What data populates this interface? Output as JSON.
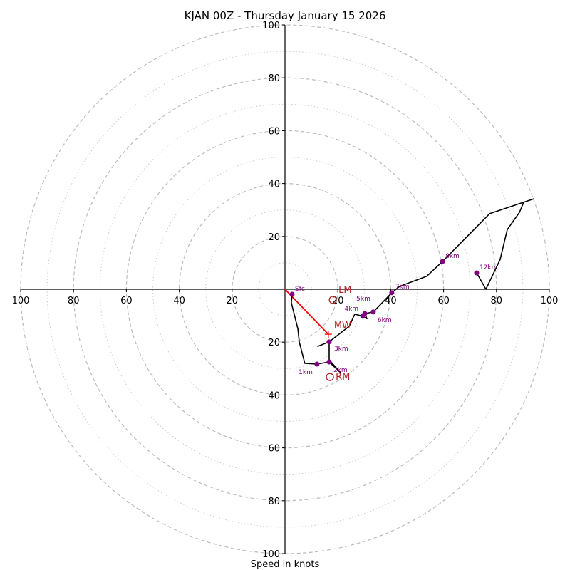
{
  "chart_data": {
    "type": "line",
    "subtype": "hodograph",
    "title": "KJAN 00Z - Thursday January 15 2026",
    "xlabel": "Speed in knots",
    "ylabel": "",
    "rings_major": [
      20,
      40,
      60,
      80,
      100
    ],
    "rings_minor": [
      10,
      30,
      50,
      70,
      90
    ],
    "xlim": [
      -100,
      100
    ],
    "ylim": [
      -100,
      100
    ],
    "x_tick_labels": [
      "100",
      "80",
      "60",
      "40",
      "20",
      "20",
      "40",
      "60",
      "80",
      "100"
    ],
    "x_tick_values": [
      -100,
      -80,
      -60,
      -40,
      -20,
      20,
      40,
      60,
      80,
      100
    ],
    "y_tick_labels": [
      "100",
      "80",
      "60",
      "40",
      "20",
      "20",
      "40",
      "60",
      "80",
      "100"
    ],
    "y_tick_values": [
      100,
      80,
      60,
      40,
      20,
      -20,
      -40,
      -60,
      -80,
      -100
    ],
    "grid": true,
    "series": [
      {
        "name": "wind profile",
        "color": "#000000",
        "points": [
          [
            2.7,
            -1.9
          ],
          [
            2.4,
            -5.1
          ],
          [
            4.9,
            -15.1
          ],
          [
            5.4,
            -19.9
          ],
          [
            7.5,
            -28.0
          ],
          [
            12.1,
            -28.3
          ],
          [
            16.7,
            -27.5
          ],
          [
            21.0,
            -31.5
          ],
          [
            16.7,
            -26.7
          ],
          [
            16.7,
            -19.9
          ],
          [
            12.4,
            -21.6
          ],
          [
            16.7,
            -19.9
          ],
          [
            24.3,
            -14.0
          ],
          [
            26.4,
            -9.4
          ],
          [
            29.4,
            -10.2
          ],
          [
            31.0,
            -11.1
          ],
          [
            30.2,
            -9.2
          ],
          [
            33.4,
            -8.6
          ],
          [
            40.4,
            -1.3
          ],
          [
            43.4,
            1.1
          ],
          [
            53.6,
            4.9
          ],
          [
            59.6,
            10.5
          ],
          [
            77.4,
            28.6
          ],
          [
            94.1,
            34.2
          ],
          [
            90.3,
            32.9
          ],
          [
            88.7,
            29.1
          ],
          [
            84.1,
            22.6
          ],
          [
            81.4,
            11.3
          ],
          [
            76.0,
            0.0
          ],
          [
            72.5,
            6.2
          ]
        ]
      }
    ],
    "height_markers": [
      {
        "label": "Sfc",
        "u": 2.7,
        "v": -1.9
      },
      {
        "label": "1km",
        "u": 12.1,
        "v": -28.3
      },
      {
        "label": "2km",
        "u": 16.7,
        "v": -27.5
      },
      {
        "label": "3km",
        "u": 16.7,
        "v": -19.9
      },
      {
        "label": "4km",
        "u": 29.4,
        "v": -10.2
      },
      {
        "label": "5km",
        "u": 30.2,
        "v": -9.2
      },
      {
        "label": "6km",
        "u": 33.4,
        "v": -8.6
      },
      {
        "label": "7km",
        "u": 40.4,
        "v": -1.3
      },
      {
        "label": "8km",
        "u": 59.6,
        "v": 10.5
      },
      {
        "label": "12km",
        "u": 72.5,
        "v": 6.2
      }
    ],
    "marker_color": "#800080",
    "motion_markers": [
      {
        "label": "LM",
        "u": 18.1,
        "v": -4.0,
        "symbol": "circle"
      },
      {
        "label": "MW",
        "u": 16.4,
        "v": -17.0,
        "symbol": "plus"
      },
      {
        "label": "RM",
        "u": 17.0,
        "v": -33.2,
        "symbol": "circle"
      }
    ],
    "motion_color": "#b22222",
    "mean_wind_vector": {
      "from": [
        0,
        0
      ],
      "to": [
        16.4,
        -17.0
      ],
      "color": "#ff0000"
    }
  }
}
